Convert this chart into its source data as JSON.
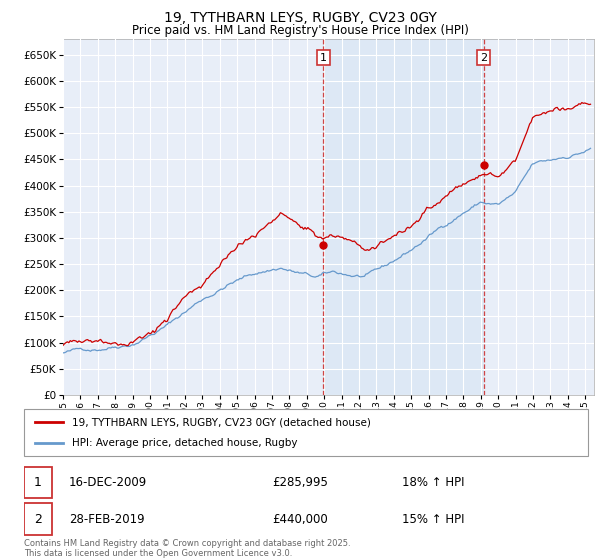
{
  "title": "19, TYTHBARN LEYS, RUGBY, CV23 0GY",
  "subtitle": "Price paid vs. HM Land Registry's House Price Index (HPI)",
  "ylabel_ticks": [
    0,
    50000,
    100000,
    150000,
    200000,
    250000,
    300000,
    350000,
    400000,
    450000,
    500000,
    550000,
    600000,
    650000
  ],
  "ylim": [
    0,
    680000
  ],
  "xlim_start": 1995.0,
  "xlim_end": 2025.5,
  "property_color": "#cc0000",
  "hpi_color": "#6699cc",
  "vline_color": "#cc3333",
  "shade_color": "#dce8f5",
  "marker1_x": 2009.96,
  "marker1_y": 285995,
  "marker2_x": 2019.17,
  "marker2_y": 440000,
  "legend_line1": "19, TYTHBARN LEYS, RUGBY, CV23 0GY (detached house)",
  "legend_line2": "HPI: Average price, detached house, Rugby",
  "table_row1_num": "1",
  "table_row1_date": "16-DEC-2009",
  "table_row1_price": "£285,995",
  "table_row1_hpi": "18% ↑ HPI",
  "table_row2_num": "2",
  "table_row2_date": "28-FEB-2019",
  "table_row2_price": "£440,000",
  "table_row2_hpi": "15% ↑ HPI",
  "footer": "Contains HM Land Registry data © Crown copyright and database right 2025.\nThis data is licensed under the Open Government Licence v3.0.",
  "bg_color": "#ffffff",
  "plot_bg_color": "#e8eef8",
  "grid_color": "#ffffff"
}
